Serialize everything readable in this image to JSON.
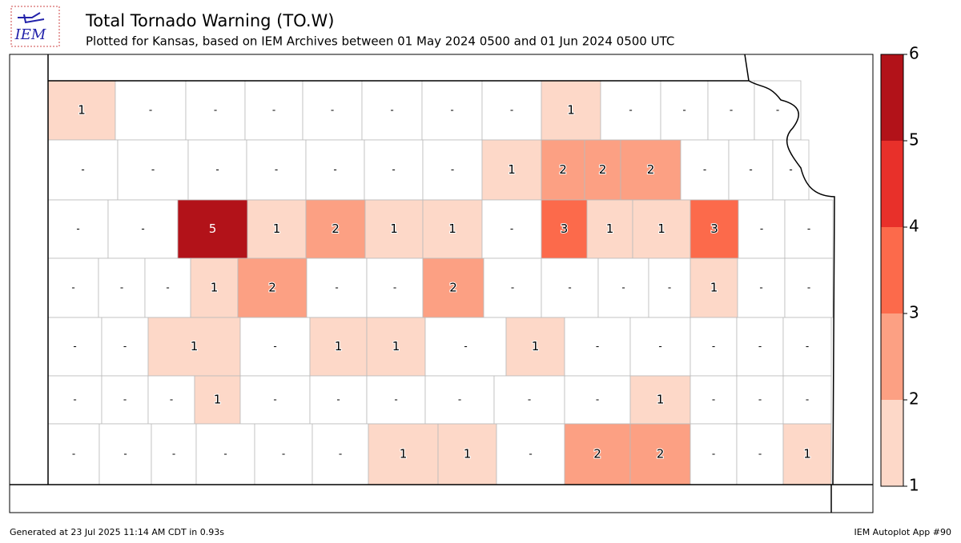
{
  "header": {
    "logo": "IEM",
    "title": "Total Tornado Warning (TO.W)",
    "subtitle": "Plotted for Kansas, based on IEM Archives  between 01 May 2024 0500 and 01 Jun 2024 0500 UTC"
  },
  "map": {
    "no_data_label": "-",
    "rows": [
      {
        "values": [
          1,
          null,
          null,
          null,
          null,
          null,
          null,
          null,
          1,
          null,
          null,
          null,
          null
        ]
      },
      {
        "values": [
          null,
          null,
          null,
          null,
          null,
          null,
          null,
          1,
          2,
          2,
          2,
          null,
          null,
          null
        ]
      },
      {
        "values": [
          null,
          null,
          5,
          1,
          2,
          1,
          1,
          null,
          3,
          1,
          1,
          3,
          null,
          null
        ]
      },
      {
        "values": [
          null,
          null,
          null,
          1,
          2,
          null,
          null,
          2,
          null,
          null,
          null,
          null,
          1,
          null,
          null
        ]
      },
      {
        "values": [
          null,
          null,
          1,
          null,
          1,
          1,
          null,
          1,
          null,
          null,
          null,
          null,
          null
        ]
      },
      {
        "values": [
          null,
          null,
          null,
          1,
          null,
          null,
          null,
          null,
          null,
          null,
          1,
          null,
          null,
          null
        ]
      },
      {
        "values": [
          null,
          null,
          null,
          null,
          null,
          null,
          1,
          1,
          null,
          2,
          2,
          null,
          null,
          1
        ]
      }
    ]
  },
  "colorbar": {
    "bins": [
      1,
      2,
      3,
      4,
      5,
      6
    ],
    "colors": [
      "#fdd8c8",
      "#fca083",
      "#fc6a4b",
      "#e8302a",
      "#b21219"
    ]
  },
  "footer": {
    "left": "Generated at 23 Jul 2025 11:14 AM CDT in 0.93s",
    "right": "IEM Autoplot App #90"
  }
}
